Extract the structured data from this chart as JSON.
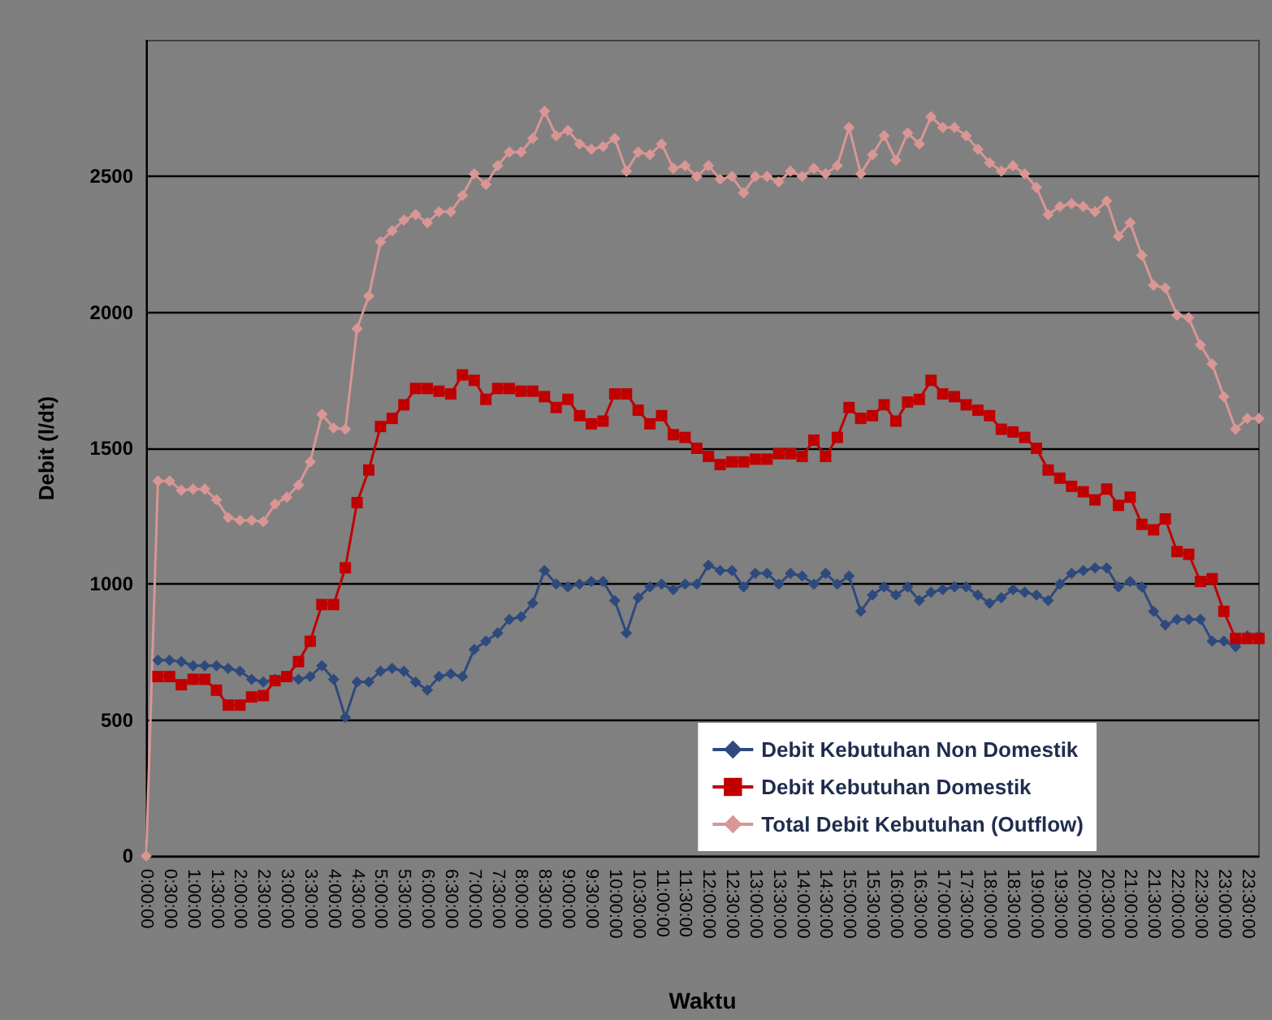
{
  "chart_data": {
    "type": "line",
    "xlabel": "Waktu",
    "ylabel": "Debit (l/dt)",
    "categories": [
      "0:00:00",
      null,
      "0:30:00",
      null,
      "1:00:00",
      null,
      "1:30:00",
      null,
      "2:00:00",
      null,
      "2:30:00",
      null,
      "3:00:00",
      null,
      "3:30:00",
      null,
      "4:00:00",
      null,
      "4:30:00",
      null,
      "5:00:00",
      null,
      "5:30:00",
      null,
      "6:00:00",
      null,
      "6:30:00",
      null,
      "7:00:00",
      null,
      "7:30:00",
      null,
      "8:00:00",
      null,
      "8:30:00",
      null,
      "9:00:00",
      null,
      "9:30:00",
      null,
      "10:00:00",
      null,
      "10:30:00",
      null,
      "11:00:00",
      null,
      "11:30:00",
      null,
      "12:00:00",
      null,
      "12:30:00",
      null,
      "13:00:00",
      null,
      "13:30:00",
      null,
      "14:00:00",
      null,
      "14:30:00",
      null,
      "15:00:00",
      null,
      "15:30:00",
      null,
      "16:00:00",
      null,
      "16:30:00",
      null,
      "17:00:00",
      null,
      "17:30:00",
      null,
      "18:00:00",
      null,
      "18:30:00",
      null,
      "19:00:00",
      null,
      "19:30:00",
      null,
      "20:00:00",
      null,
      "20:30:00",
      null,
      "21:00:00",
      null,
      "21:30:00",
      null,
      "22:00:00",
      null,
      "22:30:00",
      null,
      "23:00:00",
      null,
      "23:30:00",
      null
    ],
    "series": [
      {
        "name": "Debit Kebutuhan Non Domestik",
        "color": "#2e4a7d",
        "marker": "diamond",
        "values": [
          null,
          720,
          720,
          715,
          700,
          700,
          700,
          690,
          680,
          650,
          640,
          650,
          660,
          650,
          660,
          700,
          650,
          510,
          640,
          640,
          680,
          690,
          680,
          640,
          610,
          660,
          670,
          660,
          760,
          790,
          820,
          870,
          880,
          930,
          1050,
          1000,
          990,
          1000,
          1010,
          1010,
          940,
          820,
          950,
          990,
          1000,
          980,
          1000,
          1000,
          1070,
          1050,
          1050,
          990,
          1040,
          1040,
          1000,
          1040,
          1030,
          1000,
          1040,
          1000,
          1030,
          900,
          960,
          990,
          960,
          990,
          940,
          970,
          980,
          990,
          990,
          960,
          930,
          950,
          980,
          970,
          960,
          940,
          1000,
          1040,
          1050,
          1060,
          1060,
          990,
          1010,
          990,
          900,
          850,
          870,
          870,
          870,
          790,
          790,
          770,
          810,
          810
        ]
      },
      {
        "name": "Debit Kebutuhan Domestik",
        "color": "#c00000",
        "marker": "square",
        "values": [
          null,
          660,
          660,
          630,
          650,
          650,
          610,
          555,
          555,
          585,
          590,
          645,
          660,
          715,
          790,
          925,
          925,
          1060,
          1300,
          1420,
          1580,
          1610,
          1660,
          1720,
          1720,
          1710,
          1700,
          1770,
          1750,
          1680,
          1720,
          1720,
          1710,
          1710,
          1690,
          1650,
          1680,
          1620,
          1590,
          1600,
          1700,
          1700,
          1640,
          1590,
          1620,
          1550,
          1540,
          1500,
          1470,
          1440,
          1450,
          1450,
          1460,
          1460,
          1480,
          1480,
          1470,
          1530,
          1470,
          1540,
          1650,
          1610,
          1620,
          1660,
          1600,
          1670,
          1680,
          1750,
          1700,
          1690,
          1660,
          1640,
          1620,
          1570,
          1560,
          1540,
          1500,
          1420,
          1390,
          1360,
          1340,
          1310,
          1350,
          1290,
          1320,
          1220,
          1200,
          1240,
          1120,
          1110,
          1010,
          1020,
          900,
          800,
          800,
          800
        ]
      },
      {
        "name": "Total Debit Kebutuhan (Outflow)",
        "color": "#d99694",
        "marker": "diamond",
        "values": [
          0,
          1380,
          1380,
          1345,
          1350,
          1350,
          1310,
          1245,
          1235,
          1235,
          1230,
          1295,
          1320,
          1365,
          1450,
          1625,
          1575,
          1570,
          1940,
          2060,
          2260,
          2300,
          2340,
          2360,
          2330,
          2370,
          2370,
          2430,
          2510,
          2470,
          2540,
          2590,
          2590,
          2640,
          2740,
          2650,
          2670,
          2620,
          2600,
          2610,
          2640,
          2520,
          2590,
          2580,
          2620,
          2530,
          2540,
          2500,
          2540,
          2490,
          2500,
          2440,
          2500,
          2500,
          2480,
          2520,
          2500,
          2530,
          2510,
          2540,
          2680,
          2510,
          2580,
          2650,
          2560,
          2660,
          2620,
          2720,
          2680,
          2680,
          2650,
          2600,
          2550,
          2520,
          2540,
          2510,
          2460,
          2360,
          2390,
          2400,
          2390,
          2370,
          2410,
          2280,
          2330,
          2210,
          2100,
          2090,
          1990,
          1980,
          1880,
          1810,
          1690,
          1570,
          1610,
          1610
        ]
      }
    ],
    "ylim": [
      0,
      3000
    ],
    "yticks": [
      0,
      500,
      1000,
      1500,
      2000,
      2500
    ],
    "grid": "y",
    "legend": "bottom right",
    "line_style": "solid"
  }
}
